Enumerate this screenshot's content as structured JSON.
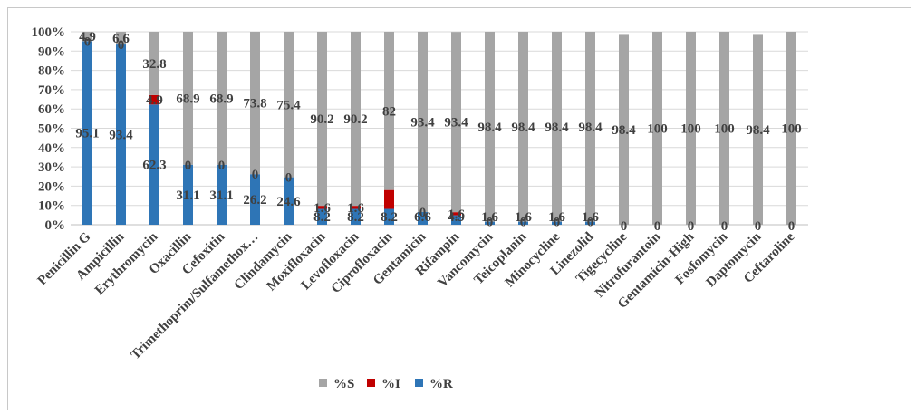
{
  "chart_data": {
    "type": "bar",
    "stacked": true,
    "percent": true,
    "categories": [
      "Penicillin G",
      "Ampicillin",
      "Erythromycin",
      "Oxacillin",
      "Cefoxitin",
      "Trimethoprim/Sulfamethox…",
      "Clindamycin",
      "Moxifloxacin",
      "Levofloxacin",
      "Ciprofloxacin",
      "Gentamicin",
      "Rifampin",
      "Vancomycin",
      "Teicoplanin",
      "Minocycline",
      "Linezolid",
      "Tigecycline",
      "Nitrofurantoin",
      "Gentamicin-High",
      "Fosfomycin",
      "Daptomycin",
      "Ceftaroline"
    ],
    "series": [
      {
        "name": "%R",
        "color": "#2e75b6",
        "values": [
          95.1,
          93.4,
          62.3,
          31.1,
          31.1,
          26.2,
          24.6,
          8.2,
          8.2,
          8.2,
          6.6,
          4.9,
          1.6,
          1.6,
          1.6,
          1.6,
          0,
          0,
          0,
          0,
          0,
          0
        ]
      },
      {
        "name": "%I",
        "color": "#c00000",
        "values": [
          0,
          0,
          4.9,
          0,
          0,
          0,
          0,
          1.6,
          1.6,
          9.8,
          0,
          1.6,
          0,
          0,
          0,
          0,
          0,
          0,
          0,
          0,
          0,
          0
        ]
      },
      {
        "name": "%S",
        "color": "#a5a5a5",
        "values": [
          4.9,
          6.6,
          32.8,
          68.9,
          68.9,
          73.8,
          75.4,
          90.2,
          90.2,
          82,
          93.4,
          93.4,
          98.4,
          98.4,
          98.4,
          98.4,
          98.4,
          100,
          100,
          100,
          98.4,
          100
        ]
      }
    ],
    "data_labels": {
      "%R": [
        "95.1",
        "93.4",
        "62.3",
        "31.1",
        "31.1",
        "26.2",
        "24.6",
        "8.2",
        "8.2",
        "8.2",
        "6.6",
        "4.9",
        "1.6",
        "1.6",
        "1.6",
        "1.6",
        "0",
        "0",
        "0",
        "0",
        "0",
        "0"
      ],
      "%I": [
        "0",
        "0",
        "4.9",
        "0",
        "0",
        "0",
        "0",
        "1.6",
        "1.6",
        "",
        "0",
        "1.6",
        "0",
        "0",
        "0",
        "0",
        "",
        "",
        "",
        "",
        "",
        ""
      ],
      "%S": [
        "4.9",
        "6.6",
        "32.8",
        "68.9",
        "68.9",
        "73.8",
        "75.4",
        "90.2",
        "90.2",
        "82",
        "93.4",
        "93.4",
        "98.4",
        "98.4",
        "98.4",
        "98.4",
        "98.4",
        "100",
        "100",
        "100",
        "98.4",
        "100"
      ]
    },
    "ylim": [
      0,
      100
    ],
    "yticks": [
      "0%",
      "10%",
      "20%",
      "30%",
      "40%",
      "50%",
      "60%",
      "70%",
      "80%",
      "90%",
      "100%"
    ],
    "grid": true,
    "legend": {
      "position": "bottom",
      "order": [
        "%S",
        "%I",
        "%R"
      ]
    },
    "title": "",
    "xlabel": "",
    "ylabel": ""
  }
}
